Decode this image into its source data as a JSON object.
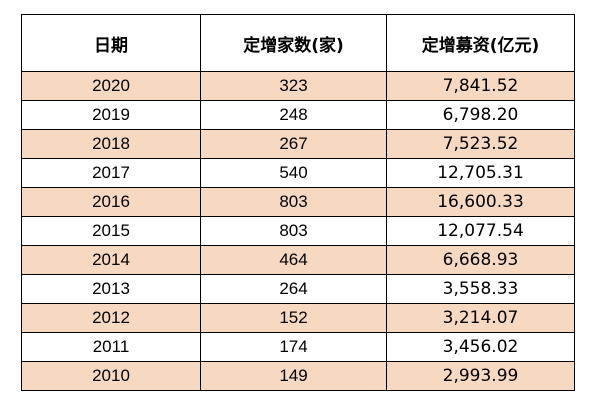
{
  "table": {
    "headers": [
      "日期",
      "定增家数(家)",
      "定增募资(亿元)"
    ],
    "rows": [
      [
        "2020",
        "323",
        "7,841.52"
      ],
      [
        "2019",
        "248",
        "6,798.20"
      ],
      [
        "2018",
        "267",
        "7,523.52"
      ],
      [
        "2017",
        "540",
        "12,705.31"
      ],
      [
        "2016",
        "803",
        "16,600.33"
      ],
      [
        "2015",
        "803",
        "12,077.54"
      ],
      [
        "2014",
        "464",
        "6,668.93"
      ],
      [
        "2013",
        "264",
        "3,558.33"
      ],
      [
        "2012",
        "152",
        "3,214.07"
      ],
      [
        "2011",
        "174",
        "3,456.02"
      ],
      [
        "2010",
        "149",
        "2,993.99"
      ]
    ]
  },
  "colors": {
    "stripe": "#f7d8c1",
    "background": "#ffffff",
    "border": "#000000"
  }
}
